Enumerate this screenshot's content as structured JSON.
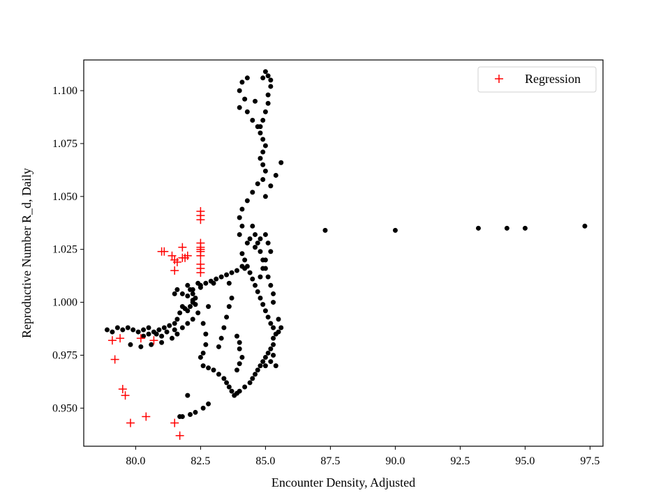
{
  "chart_data": {
    "type": "scatter",
    "title": "",
    "xlabel": "Encounter Density, Adjusted",
    "ylabel": "Reproductive Number R_d, Daily",
    "xlim": [
      78.0,
      98.0
    ],
    "ylim": [
      0.932,
      1.1145
    ],
    "x_ticks": [
      80.0,
      82.5,
      85.0,
      87.5,
      90.0,
      92.5,
      95.0,
      97.5
    ],
    "x_tick_labels": [
      "80.0",
      "82.5",
      "85.0",
      "87.5",
      "90.0",
      "92.5",
      "95.0",
      "97.5"
    ],
    "y_ticks": [
      0.95,
      0.975,
      1.0,
      1.025,
      1.05,
      1.075,
      1.1
    ],
    "y_tick_labels": [
      "0.950",
      "0.975",
      "1.000",
      "1.025",
      "1.050",
      "1.075",
      "1.100"
    ],
    "grid": false,
    "legend_position": "top-right",
    "series": [
      {
        "marker": "dot",
        "color": "#000000",
        "points": [
          [
            78.9,
            0.987
          ],
          [
            79.1,
            0.986
          ],
          [
            79.3,
            0.988
          ],
          [
            79.5,
            0.987
          ],
          [
            79.7,
            0.988
          ],
          [
            79.9,
            0.987
          ],
          [
            80.1,
            0.986
          ],
          [
            80.3,
            0.987
          ],
          [
            80.5,
            0.988
          ],
          [
            80.7,
            0.986
          ],
          [
            80.9,
            0.987
          ],
          [
            81.1,
            0.988
          ],
          [
            81.3,
            0.989
          ],
          [
            81.5,
            0.99
          ],
          [
            81.6,
            0.992
          ],
          [
            81.7,
            0.995
          ],
          [
            81.8,
            0.998
          ],
          [
            81.9,
            0.997
          ],
          [
            82.0,
            0.996
          ],
          [
            82.1,
            0.998
          ],
          [
            82.2,
            1.0
          ],
          [
            82.3,
            0.999
          ],
          [
            79.8,
            0.98
          ],
          [
            80.2,
            0.979
          ],
          [
            80.6,
            0.98
          ],
          [
            81.0,
            0.981
          ],
          [
            81.4,
            0.983
          ],
          [
            81.6,
            0.985
          ],
          [
            81.8,
            0.988
          ],
          [
            82.0,
            0.99
          ],
          [
            82.2,
            0.992
          ],
          [
            82.4,
            0.995
          ],
          [
            80.3,
            0.984
          ],
          [
            80.5,
            0.985
          ],
          [
            80.8,
            0.985
          ],
          [
            81.0,
            0.984
          ],
          [
            81.2,
            0.986
          ],
          [
            81.5,
            0.987
          ],
          [
            82.0,
            1.008
          ],
          [
            82.1,
            1.006
          ],
          [
            82.2,
            1.004
          ],
          [
            82.3,
            1.002
          ],
          [
            82.2,
            1.001
          ],
          [
            82.4,
            1.009
          ],
          [
            82.5,
            1.007
          ],
          [
            81.5,
            1.004
          ],
          [
            81.6,
            1.006
          ],
          [
            81.8,
            1.004
          ],
          [
            82.0,
            1.003
          ],
          [
            82.2,
            1.006
          ],
          [
            82.5,
            1.008
          ],
          [
            82.7,
            1.009
          ],
          [
            82.9,
            1.01
          ],
          [
            83.1,
            1.011
          ],
          [
            83.3,
            1.012
          ],
          [
            83.5,
            1.013
          ],
          [
            83.7,
            1.014
          ],
          [
            83.9,
            1.015
          ],
          [
            84.1,
            1.017
          ],
          [
            84.2,
            1.016
          ],
          [
            83.0,
            1.009
          ],
          [
            83.6,
            1.009
          ],
          [
            82.8,
            0.998
          ],
          [
            82.6,
            0.99
          ],
          [
            82.7,
            0.985
          ],
          [
            82.7,
            0.98
          ],
          [
            82.6,
            0.976
          ],
          [
            82.5,
            0.974
          ],
          [
            82.6,
            0.97
          ],
          [
            82.8,
            0.969
          ],
          [
            83.0,
            0.968
          ],
          [
            83.2,
            0.966
          ],
          [
            83.4,
            0.964
          ],
          [
            83.5,
            0.962
          ],
          [
            83.6,
            0.96
          ],
          [
            83.7,
            0.958
          ],
          [
            83.8,
            0.956
          ],
          [
            83.9,
            0.957
          ],
          [
            84.0,
            0.958
          ],
          [
            84.2,
            0.96
          ],
          [
            84.4,
            0.962
          ],
          [
            84.5,
            0.964
          ],
          [
            84.6,
            0.966
          ],
          [
            84.7,
            0.968
          ],
          [
            84.8,
            0.97
          ],
          [
            84.9,
            0.972
          ],
          [
            85.0,
            0.974
          ],
          [
            85.1,
            0.976
          ],
          [
            85.2,
            0.978
          ],
          [
            85.3,
            0.98
          ],
          [
            85.3,
            0.983
          ],
          [
            85.4,
            0.985
          ],
          [
            85.3,
            0.988
          ],
          [
            85.2,
            0.99
          ],
          [
            85.1,
            0.993
          ],
          [
            85.0,
            0.996
          ],
          [
            84.9,
            0.999
          ],
          [
            84.8,
            1.002
          ],
          [
            84.7,
            1.005
          ],
          [
            84.6,
            1.008
          ],
          [
            84.5,
            1.011
          ],
          [
            84.4,
            1.014
          ],
          [
            84.3,
            1.017
          ],
          [
            84.2,
            1.02
          ],
          [
            84.1,
            1.023
          ],
          [
            83.2,
            0.979
          ],
          [
            83.3,
            0.983
          ],
          [
            83.4,
            0.988
          ],
          [
            83.5,
            0.993
          ],
          [
            83.6,
            0.998
          ],
          [
            83.7,
            1.002
          ],
          [
            83.9,
            0.984
          ],
          [
            84.0,
            0.981
          ],
          [
            84.0,
            0.978
          ],
          [
            84.1,
            0.974
          ],
          [
            84.0,
            0.971
          ],
          [
            83.9,
            0.968
          ],
          [
            82.0,
            0.956
          ],
          [
            82.3,
            0.948
          ],
          [
            82.6,
            0.95
          ],
          [
            82.8,
            0.952
          ],
          [
            81.7,
            0.946
          ],
          [
            81.8,
            0.946
          ],
          [
            82.1,
            0.947
          ],
          [
            84.0,
            1.032
          ],
          [
            84.1,
            1.036
          ],
          [
            84.0,
            1.04
          ],
          [
            84.1,
            1.044
          ],
          [
            84.3,
            1.048
          ],
          [
            84.5,
            1.052
          ],
          [
            84.7,
            1.056
          ],
          [
            84.9,
            1.058
          ],
          [
            85.0,
            1.062
          ],
          [
            84.9,
            1.065
          ],
          [
            84.8,
            1.068
          ],
          [
            84.9,
            1.071
          ],
          [
            85.0,
            1.074
          ],
          [
            84.9,
            1.077
          ],
          [
            84.8,
            1.08
          ],
          [
            84.8,
            1.083
          ],
          [
            84.9,
            1.086
          ],
          [
            85.0,
            1.09
          ],
          [
            85.1,
            1.094
          ],
          [
            85.1,
            1.098
          ],
          [
            85.2,
            1.102
          ],
          [
            85.2,
            1.105
          ],
          [
            85.1,
            1.107
          ],
          [
            84.5,
            1.036
          ],
          [
            84.6,
            1.032
          ],
          [
            84.7,
            1.028
          ],
          [
            84.8,
            1.024
          ],
          [
            84.9,
            1.02
          ],
          [
            85.0,
            1.016
          ],
          [
            85.1,
            1.012
          ],
          [
            85.2,
            1.008
          ],
          [
            85.3,
            1.004
          ],
          [
            85.3,
            1.0
          ],
          [
            84.3,
            1.028
          ],
          [
            84.4,
            1.03
          ],
          [
            84.6,
            1.026
          ],
          [
            84.8,
            1.03
          ],
          [
            85.0,
            1.032
          ],
          [
            85.1,
            1.028
          ],
          [
            85.2,
            1.024
          ],
          [
            85.0,
            1.02
          ],
          [
            84.9,
            1.016
          ],
          [
            84.8,
            1.012
          ],
          [
            85.6,
            1.066
          ],
          [
            85.4,
            1.06
          ],
          [
            85.2,
            1.055
          ],
          [
            85.0,
            1.05
          ],
          [
            84.0,
            1.1
          ],
          [
            84.1,
            1.104
          ],
          [
            84.3,
            1.106
          ],
          [
            84.2,
            1.096
          ],
          [
            84.0,
            1.092
          ],
          [
            84.3,
            1.09
          ],
          [
            84.5,
            1.086
          ],
          [
            84.7,
            1.083
          ],
          [
            84.9,
            1.106
          ],
          [
            84.6,
            1.095
          ],
          [
            85.0,
            1.109
          ],
          [
            85.0,
            0.97
          ],
          [
            85.2,
            0.972
          ],
          [
            85.4,
            0.97
          ],
          [
            85.3,
            0.975
          ],
          [
            85.5,
            0.986
          ],
          [
            85.6,
            0.988
          ],
          [
            85.5,
            0.992
          ],
          [
            87.3,
            1.034
          ],
          [
            90.0,
            1.034
          ],
          [
            93.2,
            1.035
          ],
          [
            94.3,
            1.035
          ],
          [
            95.0,
            1.035
          ],
          [
            97.3,
            1.036
          ]
        ]
      },
      {
        "name": "Regression",
        "marker": "plus",
        "color": "#ff0000",
        "points": [
          [
            79.1,
            0.982
          ],
          [
            79.2,
            0.973
          ],
          [
            79.4,
            0.983
          ],
          [
            79.5,
            0.959
          ],
          [
            79.6,
            0.956
          ],
          [
            79.8,
            0.943
          ],
          [
            80.2,
            0.983
          ],
          [
            80.4,
            0.946
          ],
          [
            80.7,
            0.982
          ],
          [
            81.5,
            0.943
          ],
          [
            81.7,
            0.937
          ],
          [
            81.0,
            1.024
          ],
          [
            81.1,
            1.024
          ],
          [
            81.4,
            1.022
          ],
          [
            81.5,
            1.02
          ],
          [
            81.6,
            1.019
          ],
          [
            81.8,
            1.021
          ],
          [
            81.9,
            1.021
          ],
          [
            82.0,
            1.022
          ],
          [
            81.5,
            1.015
          ],
          [
            81.8,
            1.026
          ],
          [
            82.5,
            1.043
          ],
          [
            82.5,
            1.041
          ],
          [
            82.5,
            1.039
          ],
          [
            82.5,
            1.028
          ],
          [
            82.5,
            1.026
          ],
          [
            82.5,
            1.025
          ],
          [
            82.5,
            1.024
          ],
          [
            82.5,
            1.022
          ],
          [
            82.5,
            1.018
          ],
          [
            82.5,
            1.016
          ],
          [
            82.5,
            1.014
          ]
        ]
      }
    ]
  }
}
